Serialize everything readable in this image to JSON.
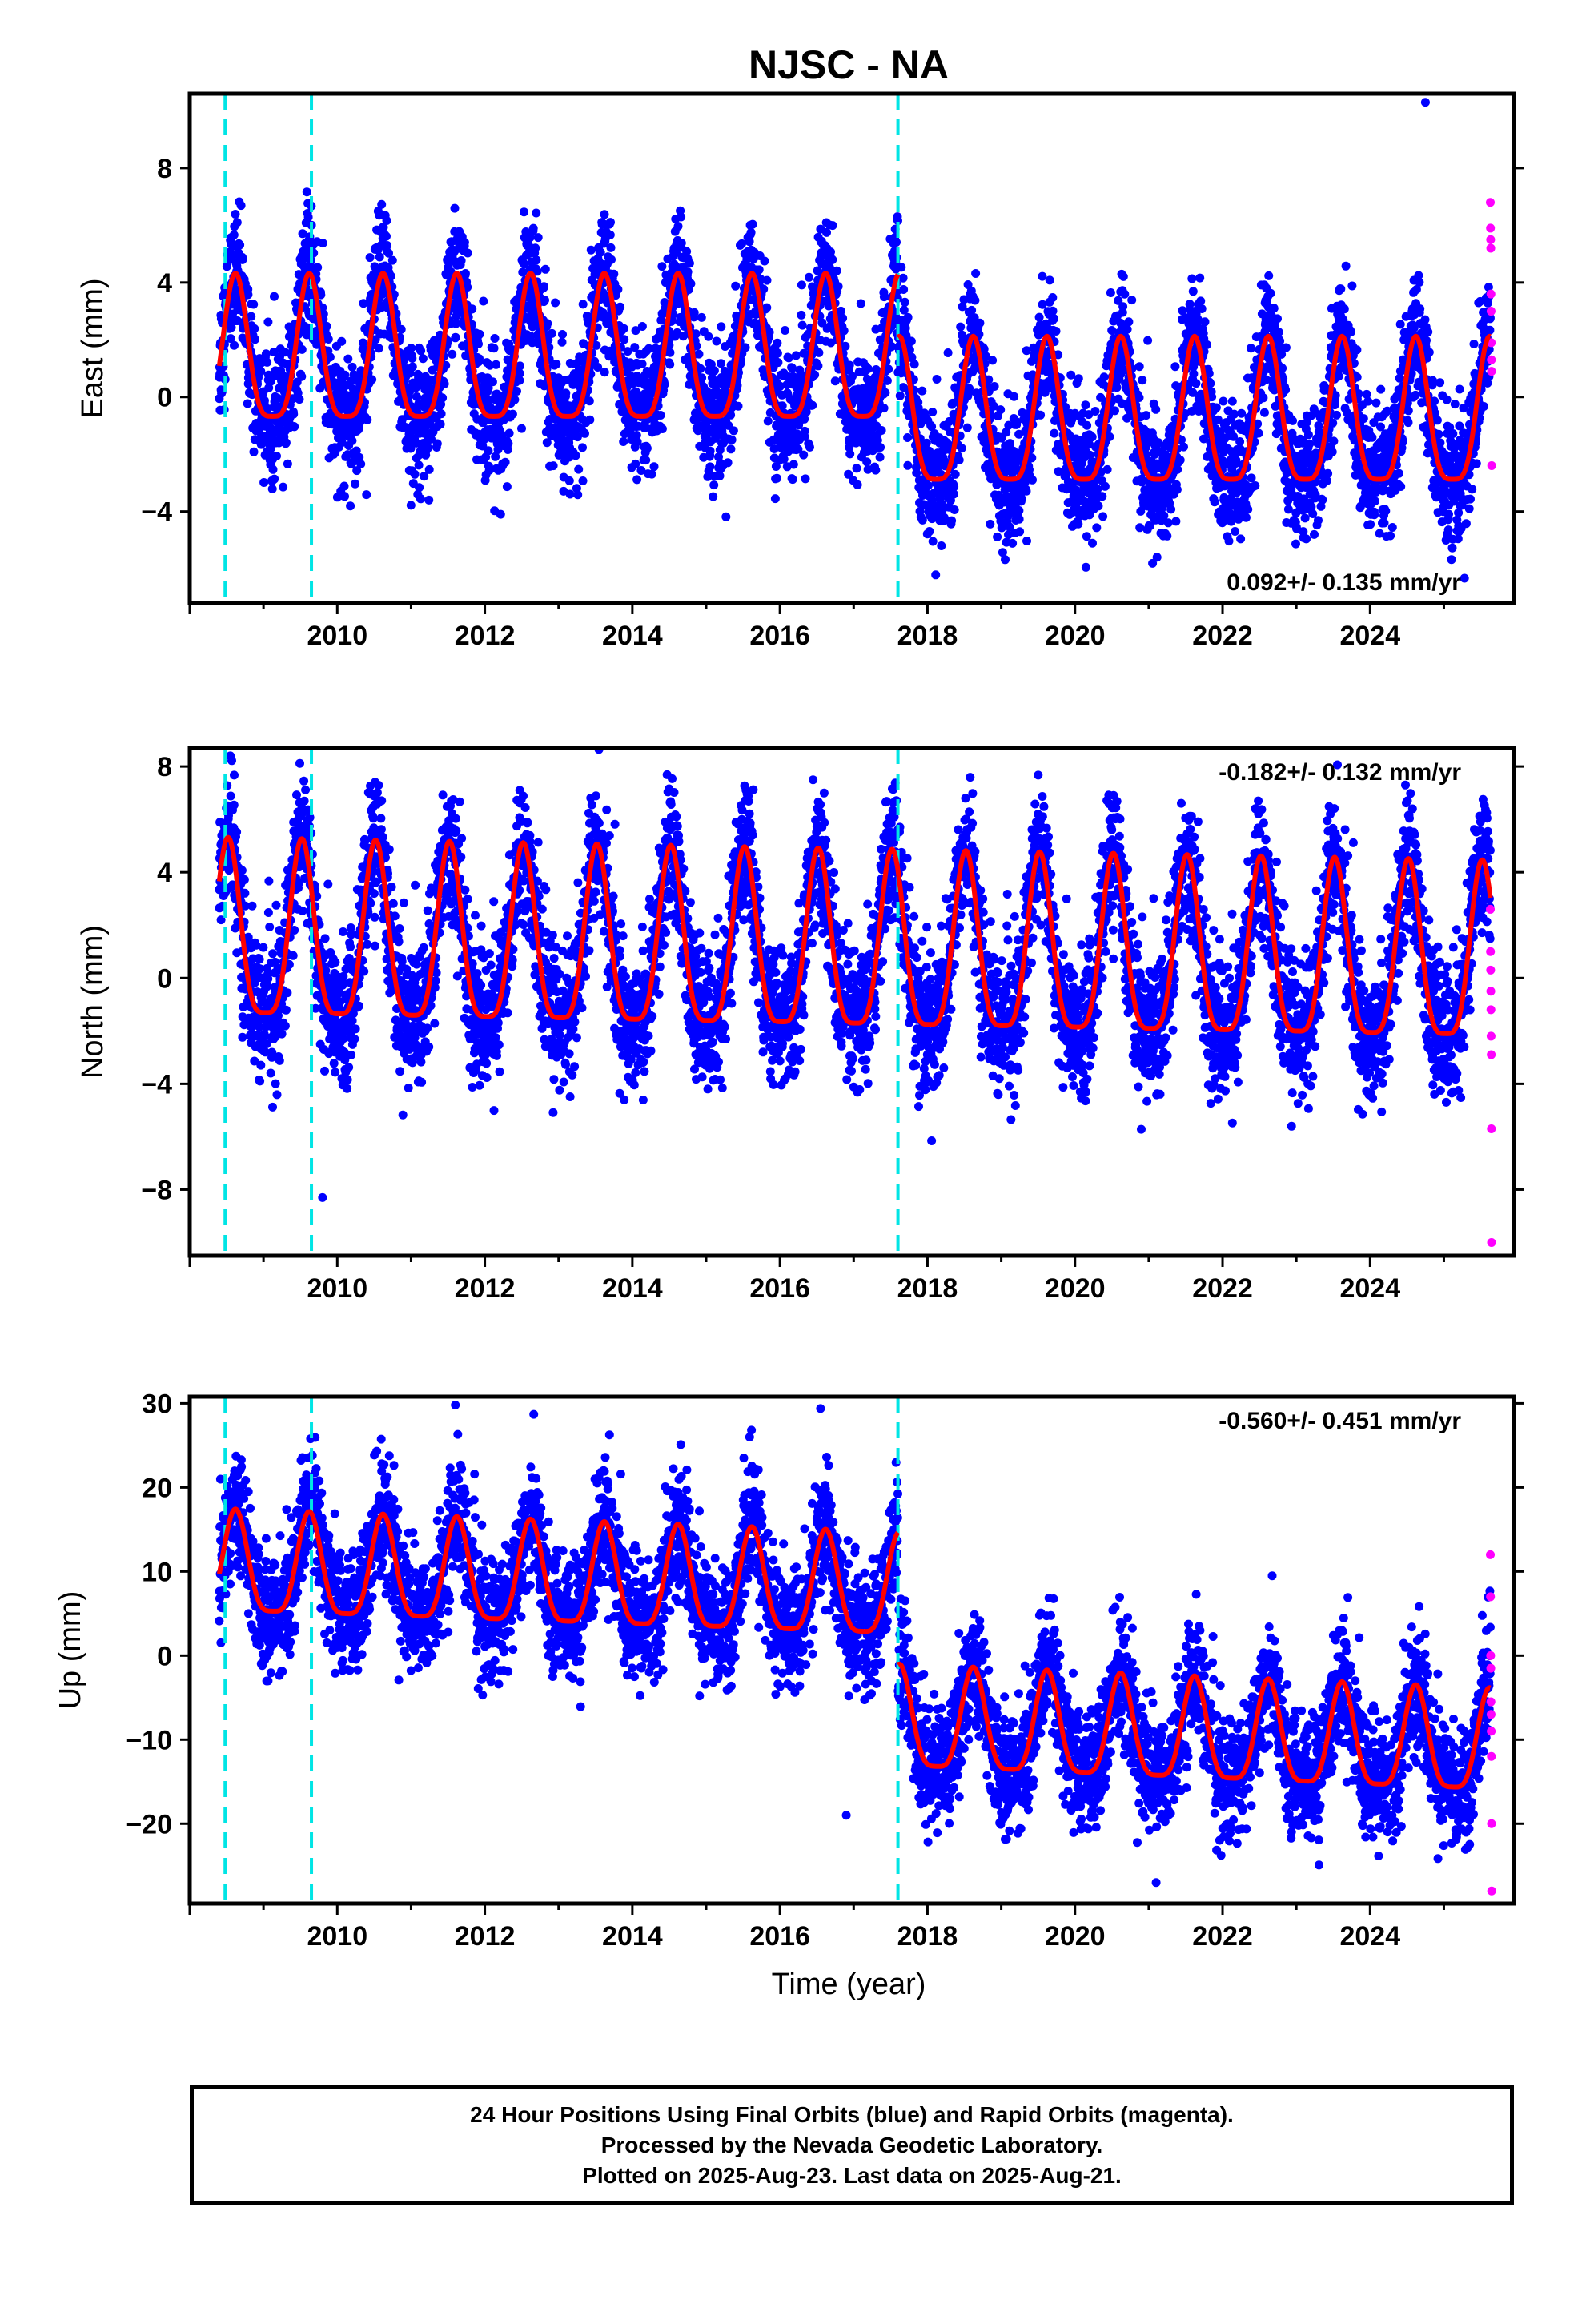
{
  "title": "NJSC - NA",
  "colors": {
    "final_orbits": "#0000ff",
    "rapid_orbits": "#ff00ff",
    "model": "#ff0000",
    "events": "#00e5e5",
    "frame": "#000000"
  },
  "chart_data": [
    {
      "type": "scatter",
      "panel": "east",
      "ylabel": "East (mm)",
      "xlabel": "",
      "xlim": [
        2008.0,
        2025.95
      ],
      "ylim": [
        -7.2,
        10.6
      ],
      "y_ticks": [
        -4,
        0,
        4,
        8
      ],
      "y_tick_labels": [
        "−4",
        "0",
        "4",
        "8"
      ],
      "x_ticks": [
        2010,
        2012,
        2014,
        2016,
        2018,
        2020,
        2022,
        2024
      ],
      "x_tick_labels": [
        "2010",
        "2012",
        "2014",
        "2016",
        "2018",
        "2020",
        "2022",
        "2024"
      ],
      "rate_label": "0.092+/- 0.135 mm/yr",
      "rate_position": "bottom-right",
      "event_lines": [
        2008.48,
        2009.65,
        2017.6
      ],
      "offsets": [
        {
          "start": 2008.4,
          "end": 2017.6,
          "value": 1.2
        },
        {
          "start": 2017.6,
          "end": 2025.7,
          "value": -1.0
        }
      ],
      "seasonal": {
        "amplitude": 2.5,
        "phase_peak": 0.62,
        "noise": 1.1
      },
      "rapid_values": [
        6.8,
        5.9,
        5.5,
        5.2,
        3.6,
        3.0,
        1.9,
        1.3,
        0.9,
        -2.4
      ],
      "outliers": [
        {
          "x": 2024.75,
          "y": 10.3
        }
      ],
      "series": [
        {
          "name": "Final Orbits",
          "color": "#0000ff",
          "x_range": [
            2008.4,
            2025.63
          ]
        },
        {
          "name": "Rapid Orbits",
          "color": "#ff00ff",
          "x_range": [
            2025.63,
            2025.65
          ]
        },
        {
          "name": "",
          "color": "#ff0000",
          "kind": "model"
        }
      ]
    },
    {
      "type": "scatter",
      "panel": "north",
      "ylabel": "North (mm)",
      "xlabel": "",
      "xlim": [
        2008.0,
        2025.95
      ],
      "ylim": [
        -10.5,
        8.7
      ],
      "y_ticks": [
        -8,
        -4,
        0,
        4,
        8
      ],
      "y_tick_labels": [
        "−8",
        "−4",
        "0",
        "4",
        "8"
      ],
      "x_ticks": [
        2010,
        2012,
        2014,
        2016,
        2018,
        2020,
        2022,
        2024
      ],
      "x_tick_labels": [
        "2010",
        "2012",
        "2014",
        "2016",
        "2018",
        "2020",
        "2022",
        "2024"
      ],
      "rate_label": "-0.182+/- 0.132 mm/yr",
      "rate_position": "top-right",
      "event_lines": [
        2008.48,
        2009.65,
        2017.6
      ],
      "offsets": [
        {
          "start": 2008.4,
          "end": 2025.7,
          "value": 1.2,
          "trend": -0.05
        }
      ],
      "seasonal": {
        "amplitude": 3.3,
        "phase_peak": 0.52,
        "noise": 1.3
      },
      "rapid_values": [
        2.6,
        1.0,
        0.3,
        -0.5,
        -1.2,
        -2.2,
        -2.9,
        -5.7,
        -10.0
      ],
      "outliers": [
        {
          "x": 2008.55,
          "y": 8.4
        },
        {
          "x": 2009.8,
          "y": -8.3
        }
      ],
      "series": [
        {
          "name": "Final Orbits",
          "color": "#0000ff",
          "x_range": [
            2008.4,
            2025.63
          ]
        },
        {
          "name": "Rapid Orbits",
          "color": "#ff00ff",
          "x_range": [
            2025.63,
            2025.65
          ]
        },
        {
          "name": "",
          "color": "#ff0000",
          "kind": "model"
        }
      ]
    },
    {
      "type": "scatter",
      "panel": "up",
      "ylabel": "Up (mm)",
      "xlabel": "Time (year)",
      "xlim": [
        2008.0,
        2025.95
      ],
      "ylim": [
        -29.5,
        30.8
      ],
      "y_ticks": [
        -20,
        -10,
        0,
        10,
        20,
        30
      ],
      "y_tick_labels": [
        "−20",
        "−10",
        "0",
        "10",
        "20",
        "30"
      ],
      "x_ticks": [
        2010,
        2012,
        2014,
        2016,
        2018,
        2020,
        2022,
        2024
      ],
      "x_tick_labels": [
        "2010",
        "2012",
        "2014",
        "2016",
        "2018",
        "2020",
        "2022",
        "2024"
      ],
      "rate_label": "-0.560+/- 0.451 mm/yr",
      "rate_position": "top-right",
      "event_lines": [
        2008.48,
        2009.65,
        2017.6
      ],
      "offsets": [
        {
          "start": 2008.4,
          "end": 2017.6,
          "value": 10.0,
          "trend": -0.3
        },
        {
          "start": 2017.6,
          "end": 2025.7,
          "value": -8.5,
          "trend": -0.35
        }
      ],
      "seasonal": {
        "amplitude": 6.0,
        "phase_peak": 0.62,
        "noise": 3.6
      },
      "rapid_values": [
        12.0,
        7.0,
        0.0,
        -1.5,
        -5.5,
        -7.0,
        -9.0,
        -12.0,
        -20.0,
        -28.0
      ],
      "outliers": [
        {
          "x": 2011.6,
          "y": 29.8
        },
        {
          "x": 2021.1,
          "y": -27.0
        },
        {
          "x": 2016.9,
          "y": -19.0
        }
      ],
      "series": [
        {
          "name": "Final Orbits",
          "color": "#0000ff",
          "x_range": [
            2008.4,
            2025.63
          ]
        },
        {
          "name": "Rapid Orbits",
          "color": "#ff00ff",
          "x_range": [
            2025.63,
            2025.65
          ]
        },
        {
          "name": "",
          "color": "#ff0000",
          "kind": "model"
        }
      ]
    }
  ],
  "caption": {
    "line1": "24 Hour Positions Using Final Orbits (blue) and Rapid Orbits (magenta).",
    "line2": "Processed by the Nevada Geodetic Laboratory.",
    "line3": "Plotted on 2025-Aug-23. Last data on 2025-Aug-21."
  }
}
